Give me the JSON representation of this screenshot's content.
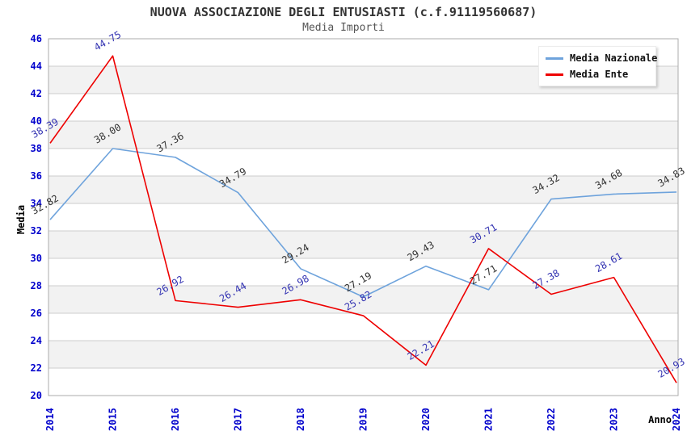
{
  "chart_data": {
    "type": "line",
    "title": "NUOVA ASSOCIAZIONE DEGLI ENTUSIASTI (c.f.91119560687)",
    "subtitle": "Media Importi",
    "xlabel": "Anno",
    "ylabel": "Media",
    "x": [
      2014,
      2015,
      2016,
      2017,
      2018,
      2019,
      2020,
      2021,
      2022,
      2023,
      2024
    ],
    "series": [
      {
        "name": "Media Nazionale",
        "color": "#6EA3DC",
        "label_color": "#333333",
        "values": [
          32.82,
          38.0,
          37.36,
          34.79,
          29.24,
          27.19,
          29.43,
          27.71,
          34.32,
          34.68,
          34.83
        ]
      },
      {
        "name": "Media Ente",
        "color": "#EE0000",
        "label_color": "#3333B2",
        "values": [
          38.39,
          44.75,
          26.92,
          26.44,
          26.98,
          25.82,
          22.21,
          30.71,
          27.38,
          28.61,
          20.93
        ]
      }
    ],
    "ylim": [
      20,
      46
    ],
    "ytick_step": 2,
    "legend_position": "top-right",
    "grid": "horizontal-bands",
    "colors": {
      "tick_label": "#0000CC",
      "band_gray": "#F2F2F2",
      "gridline": "#CCCCCC",
      "border": "#ABABAB",
      "title": "#333333",
      "subtitle": "#555555"
    }
  }
}
